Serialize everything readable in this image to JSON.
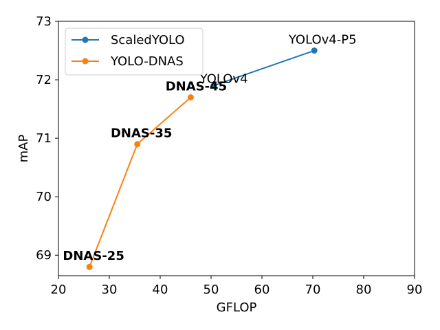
{
  "chart_data": {
    "type": "line",
    "xlabel": "GFLOP",
    "ylabel": "mAP",
    "xlim": [
      20,
      90
    ],
    "ylim": [
      68.65,
      73
    ],
    "xticks": [
      20,
      30,
      40,
      50,
      60,
      70,
      80,
      90
    ],
    "yticks": [
      69,
      70,
      71,
      72,
      73
    ],
    "grid": false,
    "legend_position": "top-left",
    "series": [
      {
        "name": "ScaledYOLO",
        "color": "#1f77b4",
        "points": [
          {
            "x": 50.5,
            "y": 71.9,
            "label": "YOLOv4",
            "bold": false
          },
          {
            "x": 70.3,
            "y": 72.5,
            "label": "YOLOv4-P5",
            "bold": false
          }
        ]
      },
      {
        "name": "YOLO-DNAS",
        "color": "#ff7f0e",
        "points": [
          {
            "x": 26.1,
            "y": 68.8,
            "label": "DNAS-25",
            "bold": true
          },
          {
            "x": 35.5,
            "y": 70.9,
            "label": "DNAS-35",
            "bold": true
          },
          {
            "x": 46.0,
            "y": 71.7,
            "label": "DNAS-45",
            "bold": true
          }
        ]
      }
    ]
  }
}
